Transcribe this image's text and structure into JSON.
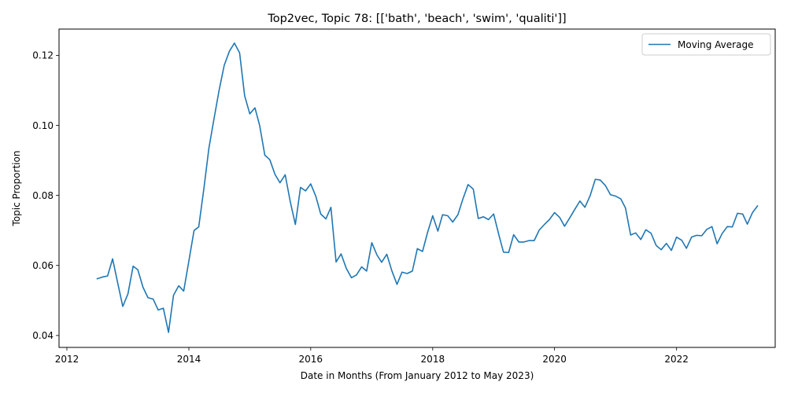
{
  "chart_data": {
    "type": "line",
    "title": "Top2vec, Topic 78: [['bath', 'beach', 'swim', 'qualiti']]",
    "xlabel": "Date in Months (From January 2012 to May 2023)",
    "ylabel": "Topic Proportion",
    "xlim": [
      "2011-11-15",
      "2023-08-15"
    ],
    "ylim": [
      0.0366,
      0.1275
    ],
    "x_ticks": [
      {
        "date": "2012-01-01",
        "label": "2012"
      },
      {
        "date": "2014-01-01",
        "label": "2014"
      },
      {
        "date": "2016-01-01",
        "label": "2016"
      },
      {
        "date": "2018-01-01",
        "label": "2018"
      },
      {
        "date": "2020-01-01",
        "label": "2020"
      },
      {
        "date": "2022-01-01",
        "label": "2022"
      }
    ],
    "y_ticks": [
      {
        "value": 0.04,
        "label": "0.04"
      },
      {
        "value": 0.06,
        "label": "0.06"
      },
      {
        "value": 0.08,
        "label": "0.08"
      },
      {
        "value": 0.1,
        "label": "0.10"
      },
      {
        "value": 0.12,
        "label": "0.12"
      }
    ],
    "grid": false,
    "legend_position": "top-right",
    "series": [
      {
        "name": "Moving Average",
        "color": "#1f77b4",
        "x": [
          "2012-07",
          "2012-08",
          "2012-09",
          "2012-10",
          "2012-11",
          "2012-12",
          "2013-01",
          "2013-02",
          "2013-03",
          "2013-04",
          "2013-05",
          "2013-06",
          "2013-07",
          "2013-08",
          "2013-09",
          "2013-10",
          "2013-11",
          "2013-12",
          "2014-01",
          "2014-02",
          "2014-03",
          "2014-04",
          "2014-05",
          "2014-06",
          "2014-07",
          "2014-08",
          "2014-09",
          "2014-10",
          "2014-11",
          "2014-12",
          "2015-01",
          "2015-02",
          "2015-03",
          "2015-04",
          "2015-05",
          "2015-06",
          "2015-07",
          "2015-08",
          "2015-09",
          "2015-10",
          "2015-11",
          "2015-12",
          "2016-01",
          "2016-02",
          "2016-03",
          "2016-04",
          "2016-05",
          "2016-06",
          "2016-07",
          "2016-08",
          "2016-09",
          "2016-10",
          "2016-11",
          "2016-12",
          "2017-01",
          "2017-02",
          "2017-03",
          "2017-04",
          "2017-05",
          "2017-06",
          "2017-07",
          "2017-08",
          "2017-09",
          "2017-10",
          "2017-11",
          "2017-12",
          "2018-01",
          "2018-02",
          "2018-03",
          "2018-04",
          "2018-05",
          "2018-06",
          "2018-07",
          "2018-08",
          "2018-09",
          "2018-10",
          "2018-11",
          "2018-12",
          "2019-01",
          "2019-02",
          "2019-03",
          "2019-04",
          "2019-05",
          "2019-06",
          "2019-07",
          "2019-08",
          "2019-09",
          "2019-10",
          "2019-11",
          "2019-12",
          "2020-01",
          "2020-02",
          "2020-03",
          "2020-04",
          "2020-05",
          "2020-06",
          "2020-07",
          "2020-08",
          "2020-09",
          "2020-10",
          "2020-11",
          "2020-12",
          "2021-01",
          "2021-02",
          "2021-03",
          "2021-04",
          "2021-05",
          "2021-06",
          "2021-07",
          "2021-08",
          "2021-09",
          "2021-10",
          "2021-11",
          "2021-12",
          "2022-01",
          "2022-02",
          "2022-03",
          "2022-04",
          "2022-05",
          "2022-06",
          "2022-07",
          "2022-08",
          "2022-09",
          "2022-10",
          "2022-11",
          "2022-12",
          "2023-01",
          "2023-02",
          "2023-03",
          "2023-04",
          "2023-05"
        ],
        "values": [
          0.0562,
          0.0567,
          0.057,
          0.0619,
          0.0549,
          0.0483,
          0.0519,
          0.0598,
          0.0588,
          0.0538,
          0.0508,
          0.0504,
          0.0473,
          0.0478,
          0.0409,
          0.0515,
          0.0542,
          0.0527,
          0.0613,
          0.07,
          0.071,
          0.082,
          0.0935,
          0.102,
          0.11,
          0.1172,
          0.1212,
          0.1235,
          0.1207,
          0.1085,
          0.1033,
          0.105,
          0.1,
          0.0915,
          0.0902,
          0.086,
          0.0836,
          0.0859,
          0.0781,
          0.0717,
          0.0823,
          0.0813,
          0.0833,
          0.0797,
          0.0747,
          0.0733,
          0.0766,
          0.061,
          0.0633,
          0.0592,
          0.0565,
          0.0573,
          0.0596,
          0.0584,
          0.0665,
          0.063,
          0.0609,
          0.0632,
          0.0585,
          0.0546,
          0.0581,
          0.0577,
          0.0584,
          0.0648,
          0.064,
          0.0694,
          0.0742,
          0.0698,
          0.0745,
          0.0742,
          0.0724,
          0.0745,
          0.079,
          0.0831,
          0.0818,
          0.0734,
          0.0739,
          0.0731,
          0.0747,
          0.0688,
          0.0638,
          0.0637,
          0.0688,
          0.0667,
          0.0667,
          0.0671,
          0.0671,
          0.0701,
          0.0717,
          0.0731,
          0.0751,
          0.0737,
          0.0712,
          0.0736,
          0.076,
          0.0784,
          0.0766,
          0.0799,
          0.0846,
          0.0844,
          0.0828,
          0.0802,
          0.0798,
          0.079,
          0.0764,
          0.0687,
          0.0693,
          0.0674,
          0.0702,
          0.0692,
          0.0657,
          0.0645,
          0.0663,
          0.0643,
          0.0681,
          0.0672,
          0.0649,
          0.0681,
          0.0686,
          0.0685,
          0.0703,
          0.0711,
          0.0662,
          0.0691,
          0.0711,
          0.071,
          0.0749,
          0.0747,
          0.0718,
          0.0751,
          0.077
        ]
      }
    ]
  }
}
